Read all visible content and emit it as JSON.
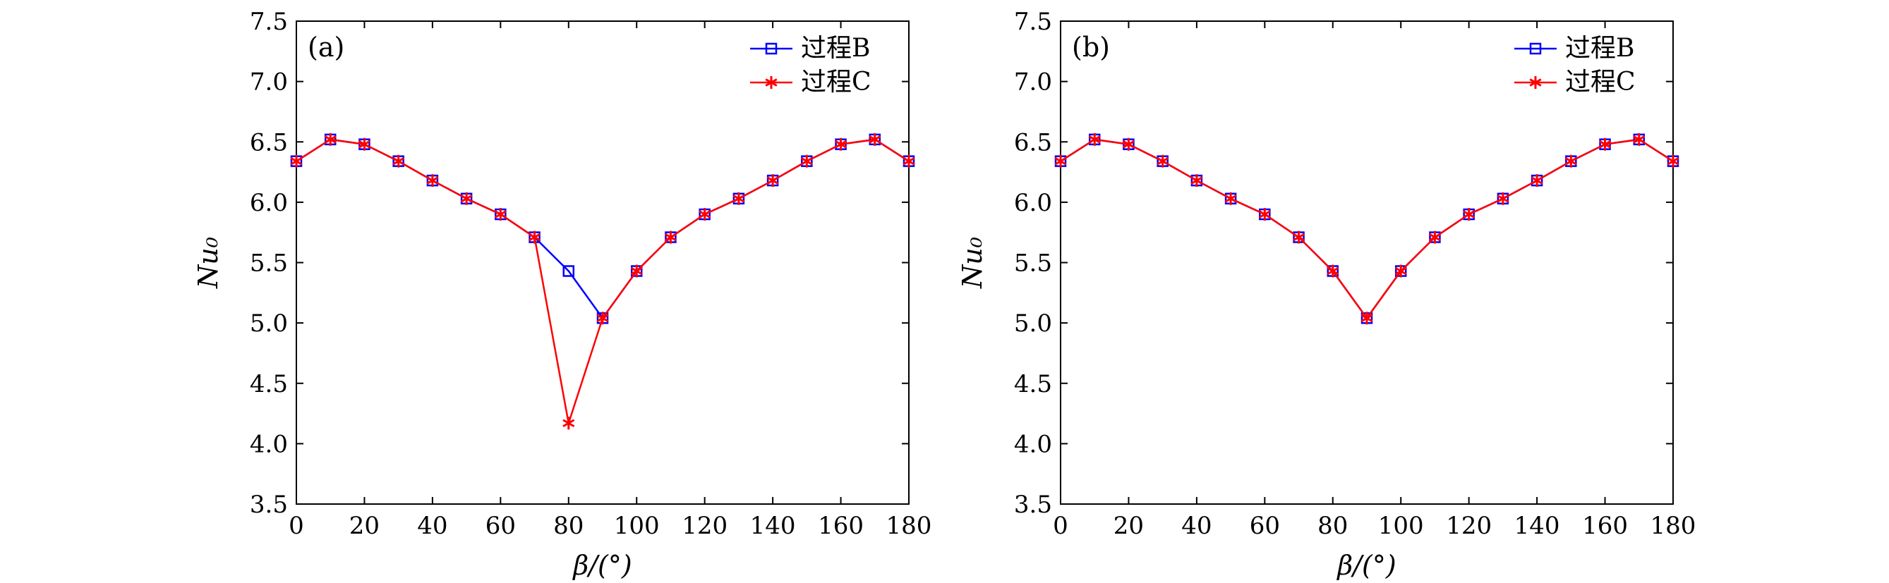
{
  "chart_data": [
    {
      "type": "line",
      "panel_label": "(a)",
      "title": "",
      "xlabel": "β/(°)",
      "ylabel": "Nu₀",
      "xlim": [
        0,
        180
      ],
      "ylim": [
        3.5,
        7.5
      ],
      "x_ticks": [
        0,
        20,
        40,
        60,
        80,
        100,
        120,
        140,
        160,
        180
      ],
      "y_ticks": [
        3.5,
        4.0,
        4.5,
        5.0,
        5.5,
        6.0,
        6.5,
        7.0,
        7.5
      ],
      "x_tick_labels": [
        "0",
        "20",
        "40",
        "60",
        "80",
        "100",
        "120",
        "140",
        "160",
        "180"
      ],
      "y_tick_labels": [
        "3.5",
        "4.0",
        "4.5",
        "5.0",
        "5.5",
        "6.0",
        "6.5",
        "7.0",
        "7.5"
      ],
      "grid": false,
      "legend_position": "top-right",
      "x": [
        0,
        10,
        20,
        30,
        40,
        50,
        60,
        70,
        80,
        90,
        100,
        110,
        120,
        130,
        140,
        150,
        160,
        170,
        180
      ],
      "series": [
        {
          "name": "过程B",
          "color": "#0000ff",
          "marker": "square",
          "values": [
            6.34,
            6.52,
            6.48,
            6.34,
            6.18,
            6.03,
            5.9,
            5.71,
            5.43,
            5.04,
            5.43,
            5.71,
            5.9,
            6.03,
            6.18,
            6.34,
            6.48,
            6.52,
            6.34
          ]
        },
        {
          "name": "过程C",
          "color": "#ff0000",
          "marker": "asterisk",
          "values": [
            6.34,
            6.52,
            6.48,
            6.34,
            6.18,
            6.03,
            5.9,
            5.71,
            4.17,
            5.04,
            5.43,
            5.71,
            5.9,
            6.03,
            6.18,
            6.34,
            6.48,
            6.52,
            6.34
          ]
        }
      ]
    },
    {
      "type": "line",
      "panel_label": "(b)",
      "title": "",
      "xlabel": "β/(°)",
      "ylabel": "Nu₀",
      "xlim": [
        0,
        180
      ],
      "ylim": [
        3.5,
        7.5
      ],
      "x_ticks": [
        0,
        20,
        40,
        60,
        80,
        100,
        120,
        140,
        160,
        180
      ],
      "y_ticks": [
        3.5,
        4.0,
        4.5,
        5.0,
        5.5,
        6.0,
        6.5,
        7.0,
        7.5
      ],
      "x_tick_labels": [
        "0",
        "20",
        "40",
        "60",
        "80",
        "100",
        "120",
        "140",
        "160",
        "180"
      ],
      "y_tick_labels": [
        "3.5",
        "4.0",
        "4.5",
        "5.0",
        "5.5",
        "6.0",
        "6.5",
        "7.0",
        "7.5"
      ],
      "grid": false,
      "legend_position": "top-right",
      "x": [
        0,
        10,
        20,
        30,
        40,
        50,
        60,
        70,
        80,
        90,
        100,
        110,
        120,
        130,
        140,
        150,
        160,
        170,
        180
      ],
      "series": [
        {
          "name": "过程B",
          "color": "#0000ff",
          "marker": "square",
          "values": [
            6.34,
            6.52,
            6.48,
            6.34,
            6.18,
            6.03,
            5.9,
            5.71,
            5.43,
            5.04,
            5.43,
            5.71,
            5.9,
            6.03,
            6.18,
            6.34,
            6.48,
            6.52,
            6.34
          ]
        },
        {
          "name": "过程C",
          "color": "#ff0000",
          "marker": "asterisk",
          "values": [
            6.34,
            6.52,
            6.48,
            6.34,
            6.18,
            6.03,
            5.9,
            5.71,
            5.43,
            5.04,
            5.43,
            5.71,
            5.9,
            6.03,
            6.18,
            6.34,
            6.48,
            6.52,
            6.34
          ]
        }
      ]
    }
  ]
}
